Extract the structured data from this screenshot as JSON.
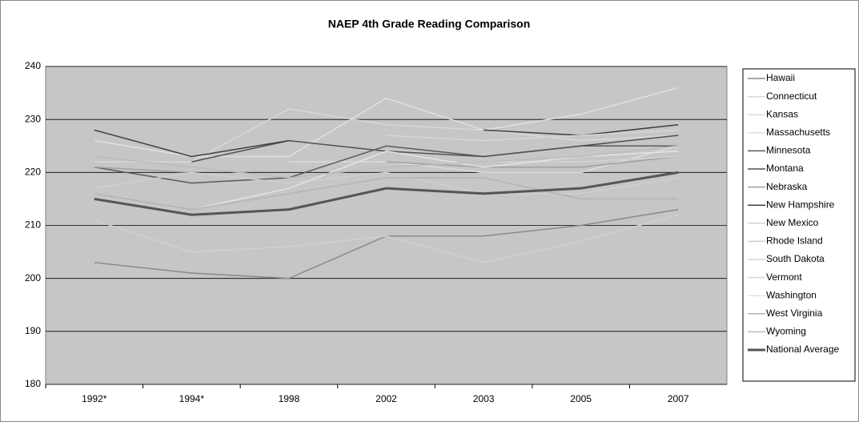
{
  "chart_data": {
    "type": "line",
    "title": "NAEP 4th Grade Reading Comparison",
    "categories": [
      "1992*",
      "1994*",
      "1998",
      "2002",
      "2003",
      "2005",
      "2007"
    ],
    "ylim": [
      180,
      240
    ],
    "yticks": [
      180,
      190,
      200,
      210,
      220,
      230,
      240
    ],
    "grid": true,
    "legend": "right",
    "series": [
      {
        "name": "Hawaii",
        "color": "#8a8a8a",
        "values": [
          203,
          201,
          200,
          208,
          208,
          210,
          213
        ]
      },
      {
        "name": "Connecticut",
        "color": "#d8d8d8",
        "values": [
          222,
          222,
          232,
          229,
          228,
          226,
          227
        ]
      },
      {
        "name": "Kansas",
        "color": "#dcdcdc",
        "values": [
          null,
          null,
          222,
          222,
          220,
          220,
          225
        ]
      },
      {
        "name": "Massachusetts",
        "color": "#e0e0e0",
        "values": [
          226,
          223,
          223,
          234,
          228,
          231,
          236
        ]
      },
      {
        "name": "Minnesota",
        "color": "#5a5a5a",
        "values": [
          221,
          218,
          219,
          225,
          223,
          225,
          225
        ]
      },
      {
        "name": "Montana",
        "color": "#505050",
        "values": [
          null,
          222,
          226,
          224,
          223,
          225,
          227
        ]
      },
      {
        "name": "Nebraska",
        "color": "#a0a0a0",
        "values": [
          221,
          220,
          null,
          222,
          221,
          221,
          223
        ]
      },
      {
        "name": "New Hampshire",
        "color": "#404040",
        "values": [
          228,
          223,
          226,
          null,
          228,
          227,
          229
        ]
      },
      {
        "name": "New Mexico",
        "color": "#d0d0d0",
        "values": [
          211,
          205,
          206,
          208,
          203,
          207,
          212
        ]
      },
      {
        "name": "Rhode Island",
        "color": "#cfcfcf",
        "values": [
          217,
          220,
          218,
          220,
          216,
          216,
          219
        ]
      },
      {
        "name": "South Dakota",
        "color": "#d4d4d4",
        "values": [
          null,
          null,
          null,
          null,
          222,
          222,
          223
        ]
      },
      {
        "name": "Vermont",
        "color": "#d6d6d6",
        "values": [
          null,
          null,
          null,
          227,
          226,
          227,
          228
        ]
      },
      {
        "name": "Washington",
        "color": "#e4e4e4",
        "values": [
          null,
          213,
          217,
          224,
          221,
          223,
          224
        ]
      },
      {
        "name": "West Virginia",
        "color": "#b4b4b4",
        "values": [
          216,
          213,
          216,
          219,
          219,
          215,
          215
        ]
      },
      {
        "name": "Wyoming",
        "color": "#bcbcbc",
        "values": [
          223,
          221,
          219,
          221,
          222,
          223,
          225
        ]
      },
      {
        "name": "National Average",
        "color": "#555555",
        "values": [
          215,
          212,
          213,
          217,
          216,
          217,
          220
        ]
      }
    ]
  }
}
